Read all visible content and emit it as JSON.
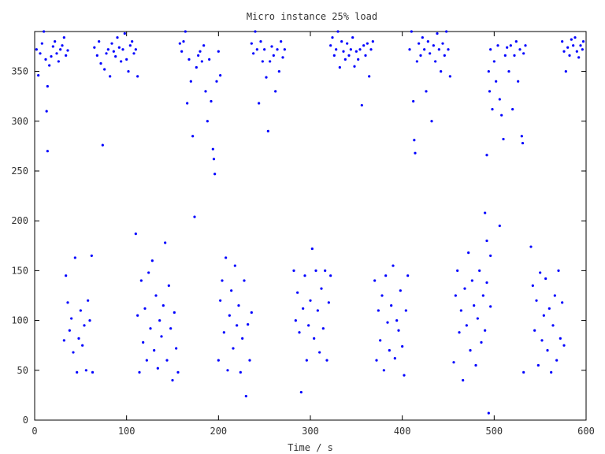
{
  "chart_data": {
    "type": "scatter",
    "title": "Micro instance 25% load",
    "xlabel": "Time / s",
    "ylabel": "",
    "xlim": [
      0,
      600
    ],
    "ylim": [
      0,
      390
    ],
    "x_ticks": [
      0,
      100,
      200,
      300,
      400,
      500,
      600
    ],
    "y_ticks": [
      0,
      50,
      100,
      150,
      200,
      250,
      300,
      350
    ],
    "grid": false,
    "legend": "none",
    "marker_color": "#0000ff",
    "series": [
      {
        "points": [
          [
            2,
            372
          ],
          [
            4,
            346
          ],
          [
            6,
            368
          ],
          [
            8,
            378
          ],
          [
            10,
            390
          ],
          [
            12,
            362
          ],
          [
            14,
            270
          ],
          [
            16,
            356
          ],
          [
            18,
            365
          ],
          [
            20,
            375
          ],
          [
            22,
            380
          ],
          [
            24,
            368
          ],
          [
            26,
            360
          ],
          [
            28,
            372
          ],
          [
            30,
            376
          ],
          [
            32,
            384
          ],
          [
            34,
            366
          ],
          [
            36,
            371
          ],
          [
            13,
            310
          ],
          [
            14,
            335
          ],
          [
            65,
            374
          ],
          [
            68,
            366
          ],
          [
            70,
            380
          ],
          [
            72,
            358
          ],
          [
            74,
            276
          ],
          [
            76,
            352
          ],
          [
            78,
            368
          ],
          [
            80,
            372
          ],
          [
            82,
            345
          ],
          [
            84,
            378
          ],
          [
            86,
            370
          ],
          [
            88,
            365
          ],
          [
            90,
            384
          ],
          [
            92,
            374
          ],
          [
            94,
            360
          ],
          [
            96,
            372
          ],
          [
            98,
            388
          ],
          [
            100,
            362
          ],
          [
            102,
            350
          ],
          [
            104,
            376
          ],
          [
            106,
            380
          ],
          [
            108,
            368
          ],
          [
            110,
            372
          ],
          [
            112,
            345
          ],
          [
            158,
            378
          ],
          [
            160,
            370
          ],
          [
            162,
            380
          ],
          [
            164,
            390
          ],
          [
            166,
            318
          ],
          [
            168,
            362
          ],
          [
            170,
            340
          ],
          [
            172,
            285
          ],
          [
            174,
            204
          ],
          [
            176,
            354
          ],
          [
            178,
            366
          ],
          [
            180,
            370
          ],
          [
            182,
            360
          ],
          [
            184,
            376
          ],
          [
            186,
            330
          ],
          [
            188,
            300
          ],
          [
            190,
            362
          ],
          [
            192,
            320
          ],
          [
            194,
            272
          ],
          [
            195,
            262
          ],
          [
            196,
            247
          ],
          [
            198,
            340
          ],
          [
            200,
            370
          ],
          [
            202,
            346
          ],
          [
            236,
            378
          ],
          [
            238,
            368
          ],
          [
            240,
            390
          ],
          [
            242,
            372
          ],
          [
            244,
            318
          ],
          [
            246,
            380
          ],
          [
            248,
            360
          ],
          [
            250,
            372
          ],
          [
            252,
            344
          ],
          [
            254,
            290
          ],
          [
            256,
            360
          ],
          [
            258,
            375
          ],
          [
            260,
            366
          ],
          [
            262,
            330
          ],
          [
            264,
            372
          ],
          [
            266,
            350
          ],
          [
            268,
            380
          ],
          [
            270,
            364
          ],
          [
            272,
            372
          ],
          [
            322,
            376
          ],
          [
            324,
            384
          ],
          [
            326,
            366
          ],
          [
            328,
            372
          ],
          [
            330,
            390
          ],
          [
            332,
            354
          ],
          [
            334,
            380
          ],
          [
            336,
            370
          ],
          [
            338,
            362
          ],
          [
            340,
            378
          ],
          [
            342,
            366
          ],
          [
            344,
            372
          ],
          [
            346,
            384
          ],
          [
            348,
            355
          ],
          [
            350,
            370
          ],
          [
            352,
            362
          ],
          [
            354,
            372
          ],
          [
            356,
            316
          ],
          [
            358,
            376
          ],
          [
            360,
            366
          ],
          [
            362,
            378
          ],
          [
            364,
            345
          ],
          [
            366,
            372
          ],
          [
            368,
            380
          ],
          [
            408,
            372
          ],
          [
            410,
            390
          ],
          [
            412,
            320
          ],
          [
            413,
            281
          ],
          [
            414,
            268
          ],
          [
            416,
            360
          ],
          [
            418,
            378
          ],
          [
            420,
            366
          ],
          [
            422,
            384
          ],
          [
            424,
            372
          ],
          [
            426,
            330
          ],
          [
            428,
            380
          ],
          [
            430,
            368
          ],
          [
            432,
            300
          ],
          [
            434,
            376
          ],
          [
            436,
            360
          ],
          [
            438,
            388
          ],
          [
            440,
            372
          ],
          [
            442,
            350
          ],
          [
            444,
            378
          ],
          [
            446,
            366
          ],
          [
            448,
            390
          ],
          [
            450,
            372
          ],
          [
            452,
            345
          ],
          [
            492,
            266
          ],
          [
            494,
            350
          ],
          [
            495,
            330
          ],
          [
            496,
            372
          ],
          [
            498,
            312
          ],
          [
            500,
            360
          ],
          [
            502,
            340
          ],
          [
            504,
            376
          ],
          [
            506,
            322
          ],
          [
            508,
            306
          ],
          [
            510,
            282
          ],
          [
            512,
            366
          ],
          [
            514,
            374
          ],
          [
            516,
            350
          ],
          [
            518,
            376
          ],
          [
            520,
            312
          ],
          [
            522,
            366
          ],
          [
            524,
            380
          ],
          [
            526,
            340
          ],
          [
            528,
            372
          ],
          [
            530,
            285
          ],
          [
            531,
            278
          ],
          [
            532,
            368
          ],
          [
            534,
            376
          ],
          [
            574,
            380
          ],
          [
            576,
            370
          ],
          [
            578,
            350
          ],
          [
            580,
            374
          ],
          [
            582,
            366
          ],
          [
            584,
            382
          ],
          [
            586,
            376
          ],
          [
            588,
            384
          ],
          [
            590,
            370
          ],
          [
            592,
            364
          ],
          [
            594,
            376
          ],
          [
            596,
            372
          ],
          [
            597,
            380
          ],
          [
            32,
            80
          ],
          [
            34,
            145
          ],
          [
            36,
            118
          ],
          [
            38,
            90
          ],
          [
            40,
            102
          ],
          [
            42,
            68
          ],
          [
            44,
            163
          ],
          [
            46,
            48
          ],
          [
            48,
            82
          ],
          [
            50,
            110
          ],
          [
            52,
            75
          ],
          [
            54,
            95
          ],
          [
            56,
            50
          ],
          [
            58,
            120
          ],
          [
            60,
            100
          ],
          [
            62,
            165
          ],
          [
            63,
            48
          ],
          [
            110,
            187
          ],
          [
            112,
            105
          ],
          [
            114,
            48
          ],
          [
            116,
            140
          ],
          [
            118,
            78
          ],
          [
            120,
            112
          ],
          [
            122,
            60
          ],
          [
            124,
            148
          ],
          [
            126,
            92
          ],
          [
            128,
            160
          ],
          [
            130,
            70
          ],
          [
            132,
            125
          ],
          [
            134,
            52
          ],
          [
            136,
            100
          ],
          [
            138,
            84
          ],
          [
            140,
            115
          ],
          [
            142,
            178
          ],
          [
            144,
            60
          ],
          [
            146,
            135
          ],
          [
            148,
            92
          ],
          [
            150,
            40
          ],
          [
            152,
            108
          ],
          [
            154,
            72
          ],
          [
            156,
            48
          ],
          [
            200,
            60
          ],
          [
            202,
            120
          ],
          [
            204,
            140
          ],
          [
            206,
            88
          ],
          [
            208,
            163
          ],
          [
            210,
            50
          ],
          [
            212,
            105
          ],
          [
            214,
            130
          ],
          [
            216,
            72
          ],
          [
            218,
            155
          ],
          [
            220,
            95
          ],
          [
            222,
            115
          ],
          [
            224,
            48
          ],
          [
            226,
            82
          ],
          [
            228,
            140
          ],
          [
            230,
            24
          ],
          [
            232,
            96
          ],
          [
            234,
            60
          ],
          [
            236,
            108
          ],
          [
            282,
            150
          ],
          [
            284,
            100
          ],
          [
            286,
            128
          ],
          [
            288,
            88
          ],
          [
            290,
            28
          ],
          [
            292,
            112
          ],
          [
            294,
            145
          ],
          [
            296,
            60
          ],
          [
            298,
            95
          ],
          [
            300,
            120
          ],
          [
            302,
            172
          ],
          [
            304,
            82
          ],
          [
            306,
            150
          ],
          [
            308,
            110
          ],
          [
            310,
            68
          ],
          [
            312,
            132
          ],
          [
            314,
            92
          ],
          [
            316,
            150
          ],
          [
            318,
            60
          ],
          [
            320,
            118
          ],
          [
            322,
            145
          ],
          [
            370,
            140
          ],
          [
            372,
            60
          ],
          [
            374,
            110
          ],
          [
            376,
            80
          ],
          [
            378,
            125
          ],
          [
            380,
            50
          ],
          [
            382,
            145
          ],
          [
            384,
            98
          ],
          [
            386,
            70
          ],
          [
            388,
            115
          ],
          [
            390,
            155
          ],
          [
            392,
            62
          ],
          [
            394,
            100
          ],
          [
            396,
            90
          ],
          [
            398,
            130
          ],
          [
            400,
            74
          ],
          [
            402,
            45
          ],
          [
            404,
            110
          ],
          [
            406,
            145
          ],
          [
            456,
            58
          ],
          [
            458,
            125
          ],
          [
            460,
            150
          ],
          [
            462,
            88
          ],
          [
            464,
            110
          ],
          [
            466,
            40
          ],
          [
            468,
            132
          ],
          [
            470,
            95
          ],
          [
            472,
            168
          ],
          [
            474,
            70
          ],
          [
            476,
            140
          ],
          [
            478,
            115
          ],
          [
            480,
            55
          ],
          [
            482,
            102
          ],
          [
            484,
            150
          ],
          [
            486,
            78
          ],
          [
            488,
            125
          ],
          [
            490,
            90
          ],
          [
            492,
            138
          ],
          [
            494,
            7
          ],
          [
            496,
            114
          ],
          [
            490,
            208
          ],
          [
            492,
            180
          ],
          [
            496,
            165
          ],
          [
            506,
            195
          ],
          [
            532,
            48
          ],
          [
            540,
            174
          ],
          [
            542,
            135
          ],
          [
            544,
            90
          ],
          [
            546,
            120
          ],
          [
            548,
            55
          ],
          [
            550,
            148
          ],
          [
            552,
            80
          ],
          [
            554,
            105
          ],
          [
            556,
            142
          ],
          [
            558,
            70
          ],
          [
            560,
            112
          ],
          [
            562,
            48
          ],
          [
            564,
            95
          ],
          [
            566,
            125
          ],
          [
            568,
            60
          ],
          [
            570,
            150
          ],
          [
            572,
            82
          ],
          [
            574,
            118
          ],
          [
            576,
            75
          ]
        ]
      }
    ]
  }
}
